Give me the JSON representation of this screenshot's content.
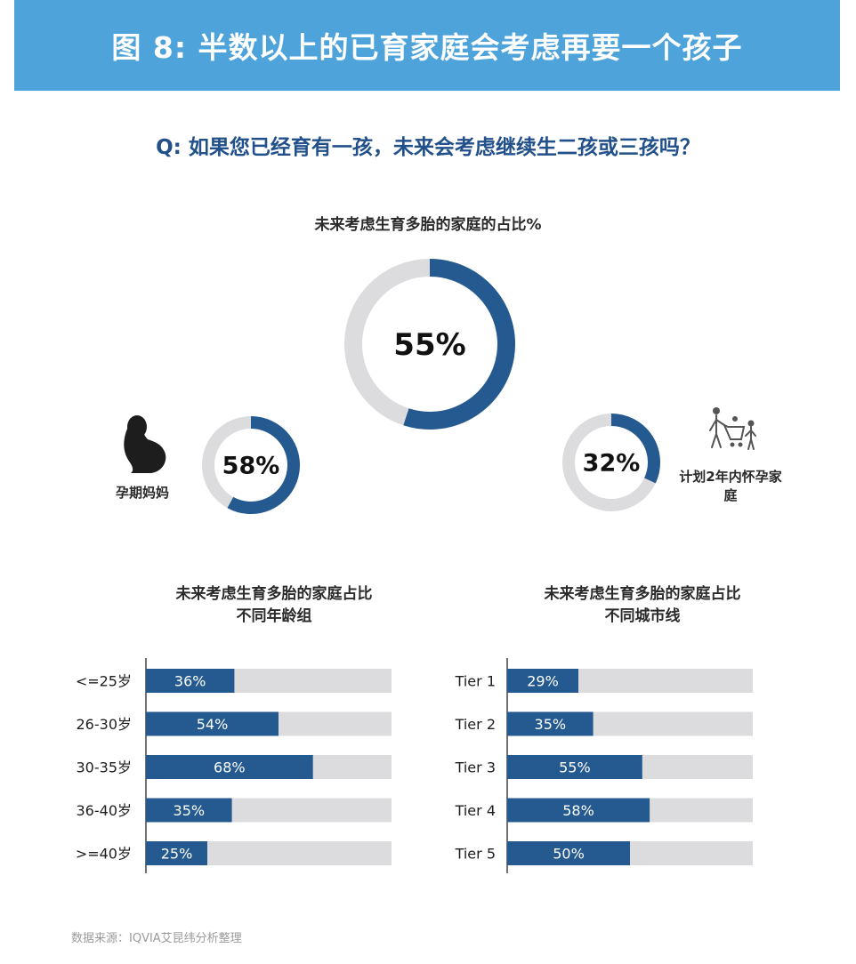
{
  "header": {
    "title": "图 8: 半数以上的已育家庭会考虑再要一个孩子",
    "question": "Q: 如果您已经育有一孩，未来会考虑继续生二孩或三孩吗？"
  },
  "colors": {
    "primary": "#245a8f",
    "track": "#dcdcde",
    "banner": "#4ea3da"
  },
  "icons": {
    "pregnant": "pregnant-woman-icon",
    "family": "family-with-cart-icon"
  },
  "chart_data": [
    {
      "type": "pie",
      "title": "未来考虑生育多胎的家庭的占比%",
      "rings": [
        {
          "value": 55,
          "label": "55%",
          "caption": ""
        },
        {
          "value": 58,
          "label": "58%",
          "caption": "孕期妈妈"
        },
        {
          "value": 32,
          "label": "32%",
          "caption": "计划2年内怀孕家庭"
        }
      ]
    },
    {
      "type": "bar",
      "title": [
        "未来考虑生育多胎的家庭占比",
        "不同年龄组"
      ],
      "categories": [
        "<=25岁",
        "26-30岁",
        "30-35岁",
        "36-40岁",
        ">=40岁"
      ],
      "values": [
        36,
        54,
        68,
        35,
        25
      ],
      "labels": [
        "36%",
        "54%",
        "68%",
        "35%",
        "25%"
      ],
      "xlim": [
        0,
        100
      ]
    },
    {
      "type": "bar",
      "title": [
        "未来考虑生育多胎的家庭占比",
        "不同城市线"
      ],
      "categories": [
        "Tier 1",
        "Tier 2",
        "Tier 3",
        "Tier 4",
        "Tier 5"
      ],
      "values": [
        29,
        35,
        55,
        58,
        50
      ],
      "labels": [
        "29%",
        "35%",
        "55%",
        "58%",
        "50%"
      ],
      "xlim": [
        0,
        100
      ]
    }
  ],
  "footer": {
    "source": "数据来源：IQVIA艾昆纬分析整理"
  }
}
